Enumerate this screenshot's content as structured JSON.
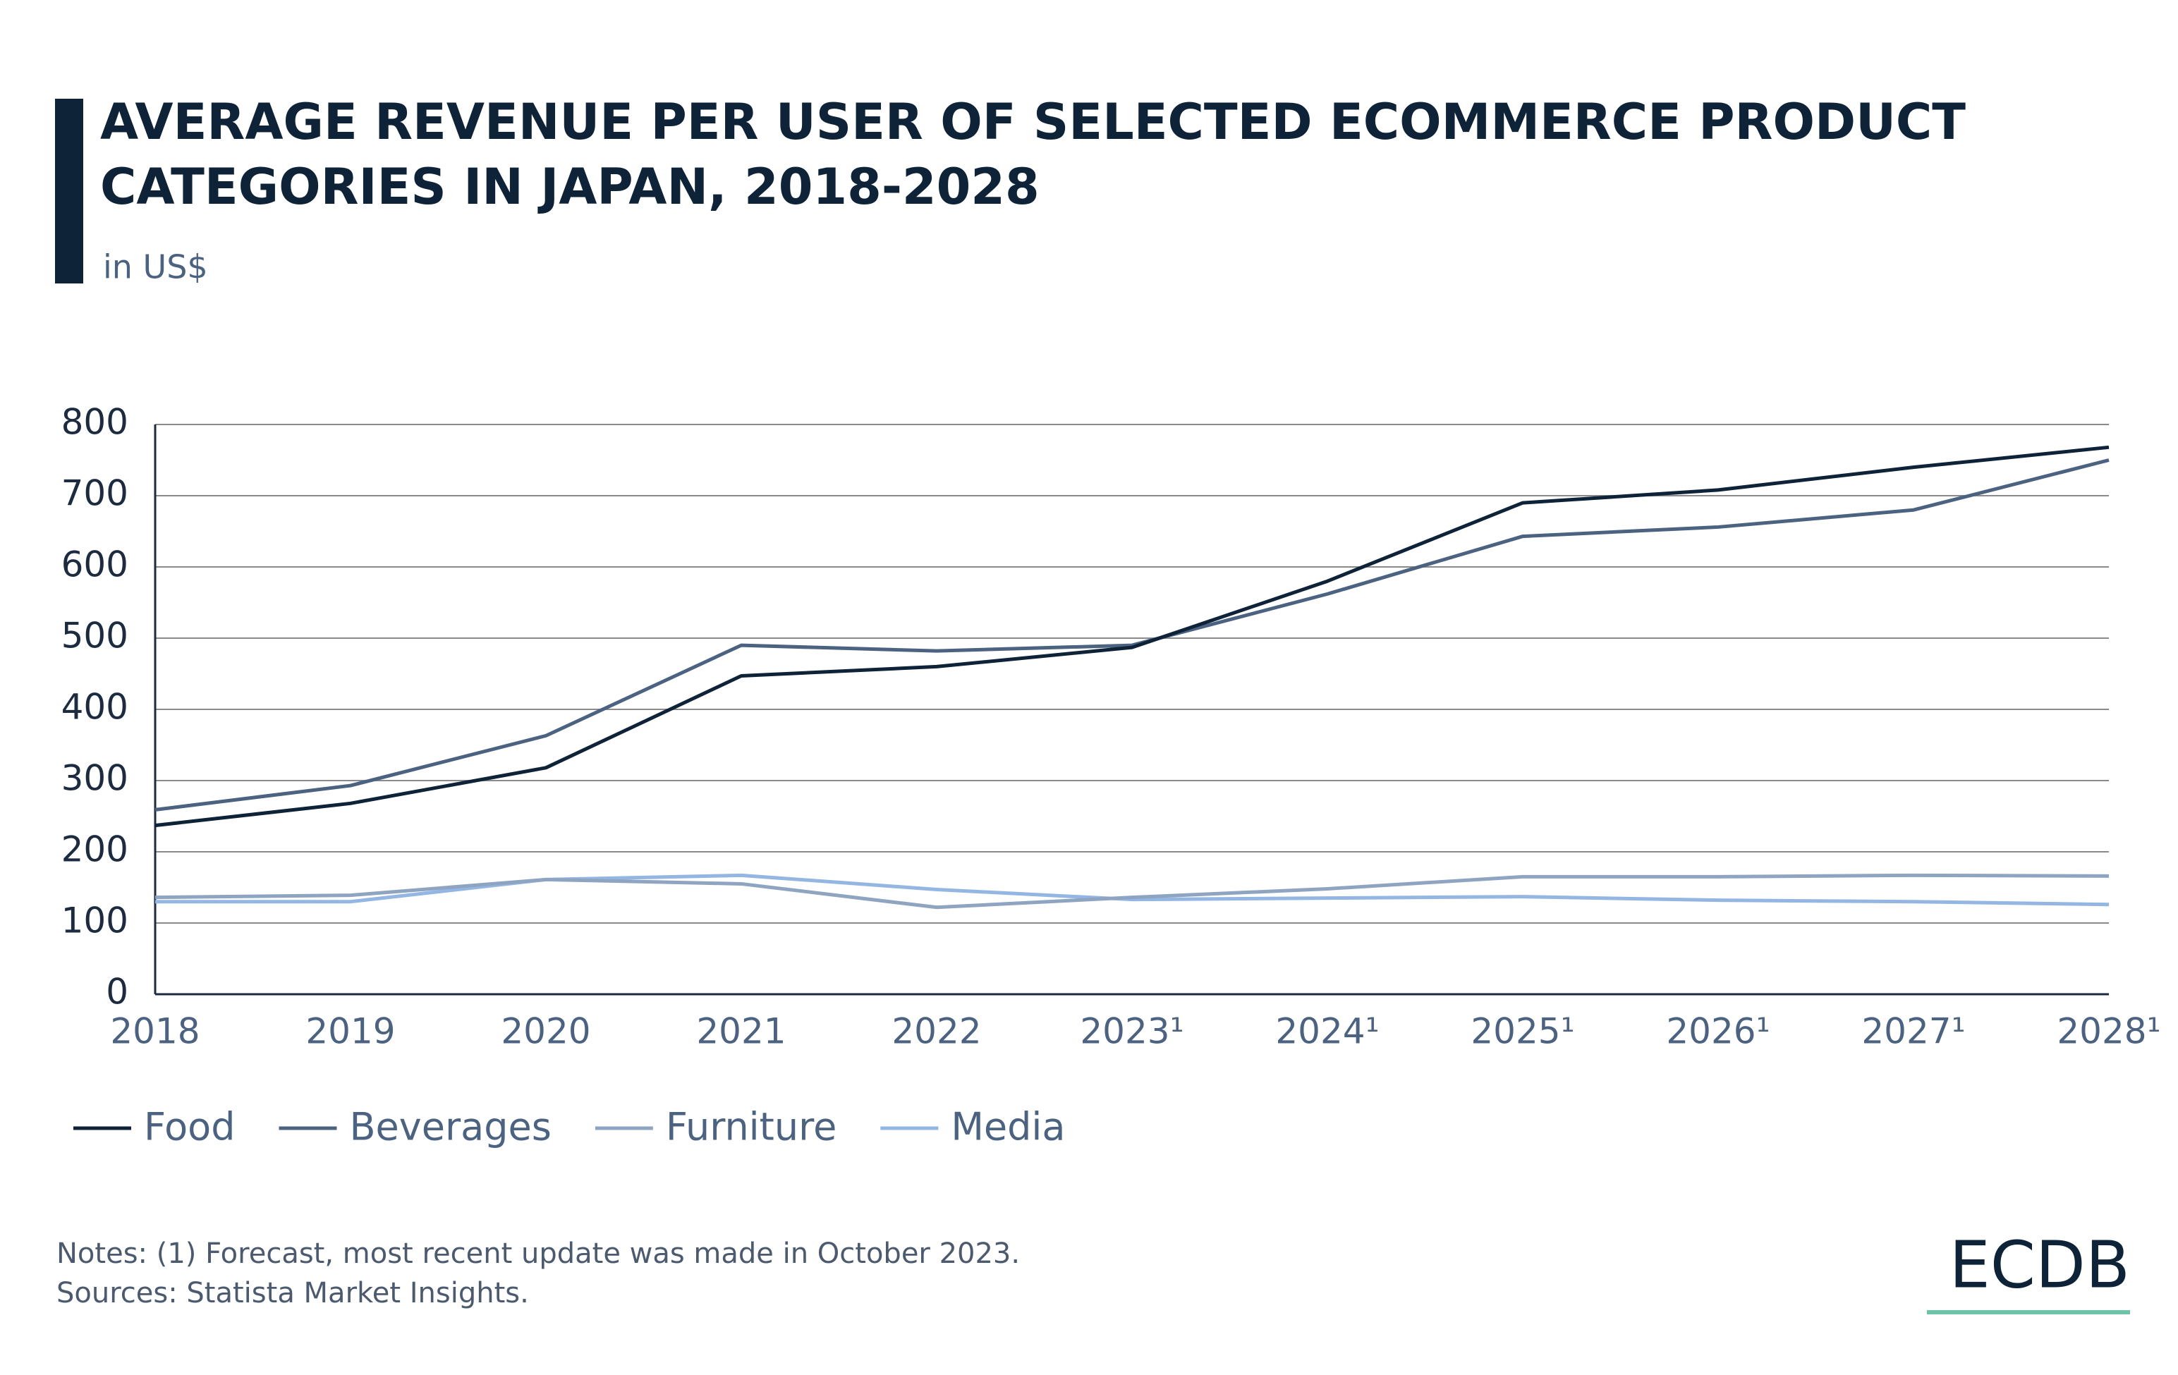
{
  "chart_data": {
    "type": "line",
    "title": [
      "AVERAGE REVENUE PER USER OF SELECTED ECOMMERCE PRODUCT",
      "CATEGORIES IN JAPAN, 2018-2028"
    ],
    "subtitle": "in US$",
    "categories": [
      "2018",
      "2019",
      "2020",
      "2021",
      "2022",
      "2023¹",
      "2024¹",
      "2025¹",
      "2026¹",
      "2027¹",
      "2028¹"
    ],
    "series": [
      {
        "name": "Food",
        "color": "#0e2238",
        "values": [
          237,
          268,
          318,
          447,
          460,
          487,
          580,
          690,
          708,
          740,
          768
        ]
      },
      {
        "name": "Beverages",
        "color": "#4b6281",
        "values": [
          259,
          293,
          363,
          490,
          482,
          490,
          562,
          643,
          656,
          680,
          750
        ]
      },
      {
        "name": "Furniture",
        "color": "#8ea4c1",
        "values": [
          136,
          139,
          161,
          155,
          122,
          136,
          148,
          165,
          165,
          167,
          166
        ]
      },
      {
        "name": "Media",
        "color": "#93b6e3",
        "values": [
          130,
          130,
          161,
          167,
          147,
          133,
          135,
          137,
          132,
          130,
          126
        ]
      }
    ],
    "ylim": [
      0,
      800
    ],
    "yticks": [
      0,
      100,
      200,
      300,
      400,
      500,
      600,
      700,
      800
    ],
    "grid": true,
    "notes": [
      "Notes: (1) Forecast, most recent update was made in October 2023.",
      "Sources: Statista Market Insights."
    ],
    "logo": "ECDB"
  }
}
